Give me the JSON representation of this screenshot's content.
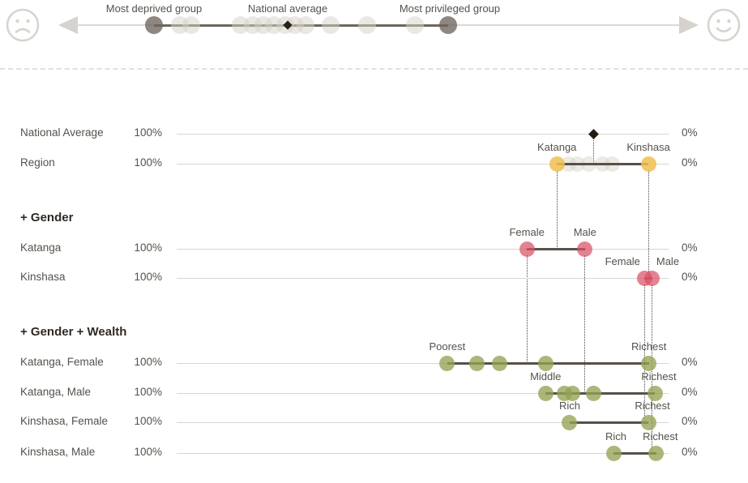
{
  "legend": {
    "labels": {
      "deprived": "Most deprived group",
      "average": "National average",
      "privileged": "Most privileged group"
    },
    "deprived_pct": 12.7,
    "average_pct": 34.7,
    "privileged_pct": 61.1,
    "ghost_pcts": [
      16.9,
      18.8,
      26.9,
      28.9,
      30.7,
      32.4,
      34.3,
      35.9,
      37.6,
      41.7,
      47.7,
      55.6
    ],
    "colors": {
      "dark_dot": "rgba(110,100,92,0.78)",
      "ghost_dot": "rgba(214,209,199,0.5)",
      "diamond": "#2a211a",
      "track": "#dcd9d4",
      "track_dark": "#6e665e",
      "face_and_arrows": "#d8d4ce"
    }
  },
  "chart_data": {
    "type": "scatter",
    "title": "Equiplot-style inequality dot plot (coverage axis runs 100% left to 0% right)",
    "axis": {
      "left_tick": "100%",
      "right_tick": "0%",
      "xlim": [
        100,
        0
      ],
      "grid": false
    },
    "colors": {
      "diamond": "#241b13",
      "region": "rgba(240,191,80,0.85)",
      "gender": "rgba(219,82,102,0.72)",
      "wealth": "rgba(148,163,83,0.78)",
      "ghost": "rgba(213,208,197,0.45)",
      "connector": "#57504a",
      "axis_line": "#d9d6d1",
      "trace": "#454545"
    },
    "sections": [
      {
        "id": "gender",
        "label": "+ Gender"
      },
      {
        "id": "wealth",
        "label": "+ Gender + Wealth"
      }
    ],
    "rows": [
      {
        "id": "national",
        "label": "National Average",
        "left_tick": "100%",
        "right_tick": "0%",
        "marker_shape": "diamond",
        "color_key": "diamond",
        "markers": [
          {
            "value": 15.2,
            "trace_to": "region"
          }
        ]
      },
      {
        "id": "region",
        "label": "Region",
        "left_tick": "100%",
        "right_tick": "0%",
        "marker_shape": "circle",
        "color_key": "region",
        "ghost_values": [
          20.3,
          18.6,
          16.3,
          13.4,
          11.4
        ],
        "markers": [
          {
            "label": "Katanga",
            "value": 22.7,
            "trace_to": "katanga"
          },
          {
            "label": "Kinshasa",
            "value": 4.1,
            "trace_to": "kinshasa"
          }
        ]
      },
      {
        "id": "katanga",
        "section": "gender",
        "label": "Katanga",
        "left_tick": "100%",
        "right_tick": "0%",
        "marker_shape": "circle",
        "color_key": "gender",
        "markers": [
          {
            "label": "Female",
            "value": 28.8,
            "trace_to": "katanga_female"
          },
          {
            "label": "Male",
            "value": 17.0,
            "trace_to": "katanga_male"
          }
        ]
      },
      {
        "id": "kinshasa",
        "label": "Kinshasa",
        "left_tick": "100%",
        "right_tick": "0%",
        "marker_shape": "circle",
        "color_key": "gender",
        "markers": [
          {
            "label": "Female",
            "value": 4.9,
            "label_dx": -27,
            "trace_to": "kinshasa_female"
          },
          {
            "label": "Male",
            "value": 3.3,
            "label_dx": 19,
            "trace_to": "kinshasa_male"
          }
        ]
      },
      {
        "id": "katanga_female",
        "section": "wealth",
        "label": "Katanga, Female",
        "left_tick": "100%",
        "right_tick": "0%",
        "marker_shape": "circle",
        "color_key": "wealth",
        "markers": [
          {
            "label": "Poorest",
            "value": 45.0
          },
          {
            "value": 39.0
          },
          {
            "value": 34.3
          },
          {
            "value": 25.0
          },
          {
            "label": "Richest",
            "value": 4.0
          }
        ]
      },
      {
        "id": "katanga_male",
        "label": "Katanga, Male",
        "left_tick": "100%",
        "right_tick": "0%",
        "marker_shape": "circle",
        "color_key": "wealth",
        "markers": [
          {
            "label": "Middle",
            "value": 25.0
          },
          {
            "value": 21.2
          },
          {
            "value": 19.6
          },
          {
            "value": 15.2
          },
          {
            "label": "Richest",
            "value": 2.8,
            "label_dx": 5
          }
        ]
      },
      {
        "id": "kinshasa_female",
        "label": "Kinshasa, Female",
        "left_tick": "100%",
        "right_tick": "0%",
        "marker_shape": "circle",
        "color_key": "wealth",
        "markers": [
          {
            "label": "Rich",
            "value": 20.1
          },
          {
            "label": "Richest",
            "value": 4.1,
            "label_dx": 5
          }
        ]
      },
      {
        "id": "kinshasa_male",
        "label": "Kinshasa, Male",
        "left_tick": "100%",
        "right_tick": "0%",
        "marker_shape": "circle",
        "color_key": "wealth",
        "markers": [
          {
            "label": "Rich",
            "value": 11.2,
            "label_dx": 3
          },
          {
            "label": "Richest",
            "value": 2.5,
            "label_dx": 5
          }
        ]
      }
    ]
  }
}
